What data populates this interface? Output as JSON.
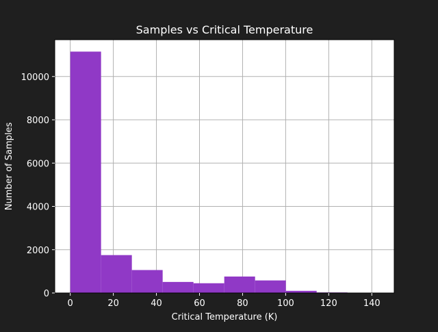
{
  "colors": {
    "figure_background": "#1f1f1f",
    "axes_background": "#ffffff",
    "bar_fill": "#9039c6",
    "grid": "#b0b0b0",
    "text": "#ffffff"
  },
  "chart_data": {
    "type": "bar",
    "title": "Samples vs Critical Temperature",
    "xlabel": "Critical Temperature (K)",
    "ylabel": "Number of Samples",
    "xlim": [
      -7.2,
      150.4
    ],
    "ylim": [
      0,
      11700
    ],
    "grid": true,
    "bins": [
      {
        "x0": 0.0,
        "x1": 14.3,
        "count": 11150
      },
      {
        "x0": 14.3,
        "x1": 28.6,
        "count": 1750
      },
      {
        "x0": 28.6,
        "x1": 42.9,
        "count": 1060
      },
      {
        "x0": 42.9,
        "x1": 57.2,
        "count": 510
      },
      {
        "x0": 57.2,
        "x1": 71.5,
        "count": 450
      },
      {
        "x0": 71.5,
        "x1": 85.8,
        "count": 760
      },
      {
        "x0": 85.8,
        "x1": 100.1,
        "count": 580
      },
      {
        "x0": 100.1,
        "x1": 114.4,
        "count": 100
      },
      {
        "x0": 114.4,
        "x1": 128.7,
        "count": 25
      },
      {
        "x0": 128.7,
        "x1": 143.0,
        "count": 15
      }
    ],
    "x_ticks": [
      0,
      20,
      40,
      60,
      80,
      100,
      120,
      140
    ],
    "x_tick_labels": [
      "0",
      "20",
      "40",
      "60",
      "80",
      "100",
      "120",
      "140"
    ],
    "y_ticks": [
      0,
      2000,
      4000,
      6000,
      8000,
      10000
    ],
    "y_tick_labels": [
      "0",
      "2000",
      "4000",
      "6000",
      "8000",
      "10000"
    ]
  }
}
